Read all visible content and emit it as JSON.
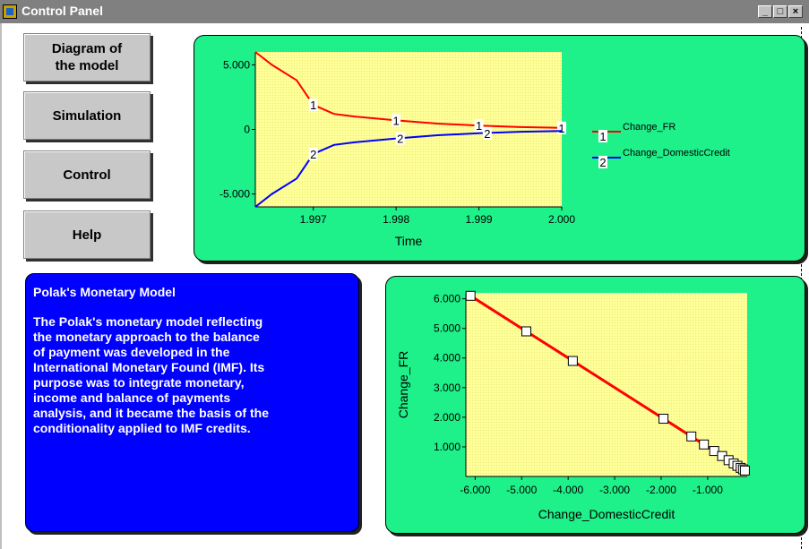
{
  "window": {
    "title": "Control Panel",
    "minimize": "_",
    "maximize": "□",
    "close": "×"
  },
  "nav": {
    "diagram": "Diagram of\nthe model",
    "simulation": "Simulation",
    "control": "Control",
    "help": "Help"
  },
  "info": {
    "heading": "Polak's Monetary Model",
    "body": "The Polak's monetary model reflecting\nthe monetary approach to the balance\nof payment was developed in the\nInternational Monetary Found (IMF). Its\npurpose was to integrate monetary,\nincome and balance of payments\nanalysis, and it became the basis of the\nconditionality applied to IMF credits."
  },
  "colors": {
    "panel": "#1ef08a",
    "plot_bg": "#ffff99",
    "series1": "#ff0000",
    "series2": "#0000ff",
    "info_bg": "#0000ff"
  },
  "chart_data": [
    {
      "type": "line",
      "title": "",
      "xlabel": "Time",
      "ylabel": "",
      "xlim": [
        1996.3,
        2000.0
      ],
      "ylim": [
        -6000,
        6000
      ],
      "xticks": [
        1997,
        1998,
        1999,
        2000
      ],
      "xtick_labels": [
        "1.997",
        "1.998",
        "1.999",
        "2.000"
      ],
      "yticks": [
        5000,
        0,
        -5000
      ],
      "ytick_labels": [
        "5.000",
        "0",
        "-5.000"
      ],
      "legend_position": "right",
      "series": [
        {
          "name": "Change_FR",
          "marker": "1",
          "x": [
            1996.3,
            1996.5,
            1996.8,
            1997.0,
            1997.25,
            1997.5,
            1998.0,
            1998.5,
            1999.0,
            1999.5,
            2000.0
          ],
          "y": [
            6000,
            5000,
            3800,
            1900,
            1200,
            1000,
            700,
            450,
            300,
            180,
            120
          ],
          "label_x": [
            1997.0,
            1998.0,
            1999.0,
            2000.0
          ],
          "label_y": [
            1900,
            700,
            300,
            120
          ]
        },
        {
          "name": "Change_DomesticCredit",
          "marker": "2",
          "x": [
            1996.3,
            1996.5,
            1996.8,
            1997.0,
            1997.25,
            1997.5,
            1998.0,
            1998.5,
            1999.0,
            1999.5,
            2000.0
          ],
          "y": [
            -6000,
            -5000,
            -3800,
            -1900,
            -1200,
            -1000,
            -700,
            -450,
            -300,
            -180,
            -120
          ],
          "label_x": [
            1997.0,
            1998.05,
            1999.1
          ],
          "label_y": [
            -1900,
            -700,
            -300
          ]
        }
      ]
    },
    {
      "type": "scatter",
      "title": "",
      "xlabel": "Change_DomesticCredit",
      "ylabel": "Change_FR",
      "xlim": [
        -6200,
        -150
      ],
      "ylim": [
        0,
        6200
      ],
      "xticks": [
        -6000,
        -5000,
        -4000,
        -3000,
        -2000,
        -1000
      ],
      "xtick_labels": [
        "-6.000",
        "-5.000",
        "-4.000",
        "-3.000",
        "-2.000",
        "-1.000"
      ],
      "yticks": [
        1000,
        2000,
        3000,
        4000,
        5000,
        6000
      ],
      "ytick_labels": [
        "1.000",
        "2.000",
        "3.000",
        "4.000",
        "5.000",
        "6.000"
      ],
      "series": [
        {
          "name": "",
          "x": [
            -6100,
            -4900,
            -3900,
            -1950,
            -1350,
            -1080,
            -860,
            -690,
            -550,
            -440,
            -360,
            -290,
            -240,
            -200
          ],
          "y": [
            6100,
            4900,
            3900,
            1950,
            1350,
            1080,
            860,
            690,
            550,
            440,
            360,
            290,
            240,
            200
          ]
        }
      ]
    }
  ]
}
